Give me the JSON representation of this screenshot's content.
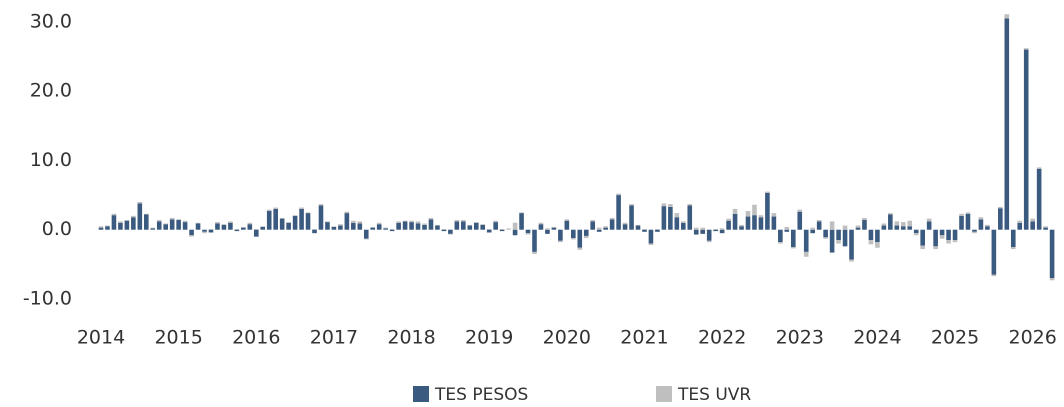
{
  "chart_data": {
    "type": "stacked_bar",
    "categories": [
      "2014",
      null,
      null,
      null,
      null,
      null,
      null,
      null,
      null,
      null,
      null,
      null,
      "2015",
      null,
      null,
      null,
      null,
      null,
      null,
      null,
      null,
      null,
      null,
      null,
      "2016",
      null,
      null,
      null,
      null,
      null,
      null,
      null,
      null,
      null,
      null,
      null,
      "2017",
      null,
      null,
      null,
      null,
      null,
      null,
      null,
      null,
      null,
      null,
      null,
      "2018",
      null,
      null,
      null,
      null,
      null,
      null,
      null,
      null,
      null,
      null,
      null,
      "2019",
      null,
      null,
      null,
      null,
      null,
      null,
      null,
      null,
      null,
      null,
      null,
      "2020",
      null,
      null,
      null,
      null,
      null,
      null,
      null,
      null,
      null,
      null,
      null,
      "2021",
      null,
      null,
      null,
      null,
      null,
      null,
      null,
      null,
      null,
      null,
      null,
      "2022",
      null,
      null,
      null,
      null,
      null,
      null,
      null,
      null,
      null,
      null,
      null,
      "2023",
      null,
      null,
      null,
      null,
      null,
      null,
      null,
      null,
      null,
      null,
      null,
      "2024",
      null,
      null,
      null,
      null,
      null,
      null,
      null,
      null,
      null,
      null,
      null,
      "2025",
      null,
      null,
      null,
      null,
      null,
      null,
      null,
      null,
      null,
      null,
      null,
      "2026",
      null,
      null,
      null
    ],
    "series": [
      {
        "name": "TES PESOS",
        "color": "#3b5a80",
        "values": [
          0.3,
          0.5,
          2.1,
          1.0,
          1.3,
          1.8,
          3.8,
          2.2,
          0.2,
          1.2,
          0.8,
          1.5,
          1.4,
          1.1,
          -0.8,
          0.9,
          -0.3,
          -0.4,
          0.9,
          0.7,
          1.0,
          -0.2,
          0.3,
          0.8,
          -1.0,
          0.4,
          2.7,
          3.0,
          1.6,
          1.0,
          2.0,
          3.0,
          2.4,
          -0.5,
          3.5,
          1.1,
          0.4,
          0.6,
          2.4,
          1.0,
          0.9,
          -1.3,
          0.3,
          0.8,
          0.2,
          -0.2,
          1.0,
          1.2,
          1.1,
          0.9,
          0.7,
          1.5,
          0.6,
          -0.2,
          -0.6,
          1.2,
          1.2,
          0.6,
          1.0,
          0.7,
          -0.4,
          1.1,
          -0.2,
          0.0,
          -0.8,
          2.4,
          -0.5,
          -3.2,
          0.8,
          -0.6,
          0.3,
          -1.6,
          1.3,
          -1.2,
          -2.6,
          -0.9,
          1.2,
          -0.3,
          0.3,
          1.5,
          5.0,
          0.8,
          3.5,
          0.6,
          -0.3,
          -2.0,
          -0.3,
          3.4,
          3.3,
          1.8,
          1.0,
          3.5,
          -0.7,
          -0.6,
          -1.6,
          -0.2,
          -0.5,
          1.3,
          2.3,
          0.5,
          1.9,
          2.1,
          1.8,
          5.3,
          1.9,
          -1.8,
          -0.3,
          -2.5,
          2.6,
          -3.2,
          -0.5,
          1.2,
          -1.1,
          -3.3,
          -1.5,
          -2.4,
          -4.3,
          0.3,
          1.4,
          -1.5,
          -1.8,
          0.6,
          2.2,
          0.6,
          0.5,
          0.5,
          -0.5,
          -2.3,
          1.2,
          -2.4,
          -0.8,
          -1.5,
          -1.5,
          2.0,
          2.3,
          -0.3,
          1.5,
          0.5,
          -6.5,
          3.1,
          30.5,
          -2.5,
          1.0,
          26.0,
          1.2,
          8.8,
          0.3,
          -7.0
        ]
      },
      {
        "name": "TES UVR",
        "color": "#bfbfbf",
        "values": [
          0.2,
          0.1,
          0.2,
          0.2,
          0.1,
          0.2,
          0.2,
          0.1,
          0.1,
          0.2,
          0.1,
          0.2,
          0.1,
          0.2,
          -0.2,
          0.1,
          -0.2,
          0.1,
          0.2,
          0.1,
          0.2,
          0.1,
          0.1,
          0.2,
          0.1,
          0.1,
          0.2,
          0.2,
          0.1,
          0.1,
          0.1,
          0.2,
          0.1,
          0.1,
          0.2,
          0.1,
          0.1,
          0.2,
          0.2,
          0.3,
          0.3,
          -0.1,
          0.1,
          0.2,
          0.1,
          0.1,
          0.2,
          0.1,
          0.2,
          0.3,
          0.2,
          0.2,
          0.1,
          0.1,
          -0.1,
          0.2,
          0.2,
          0.1,
          0.1,
          0.1,
          0.1,
          0.2,
          0.1,
          0.2,
          1.0,
          0.1,
          -0.2,
          -0.3,
          0.2,
          0.2,
          0.1,
          -0.2,
          0.2,
          -0.2,
          -0.3,
          -0.3,
          0.2,
          0.3,
          0.2,
          0.2,
          0.2,
          0.2,
          0.2,
          0.1,
          0.1,
          -0.2,
          0.1,
          0.4,
          0.4,
          0.6,
          0.2,
          0.2,
          0.3,
          0.3,
          -0.2,
          0.1,
          0.2,
          0.3,
          0.7,
          0.2,
          0.8,
          1.5,
          0.3,
          0.2,
          0.5,
          -0.2,
          0.4,
          -0.2,
          0.3,
          -0.7,
          0.3,
          0.2,
          -0.2,
          1.2,
          -0.5,
          0.6,
          -0.3,
          0.3,
          0.3,
          -0.6,
          -0.8,
          0.3,
          0.2,
          0.6,
          0.6,
          0.8,
          -0.3,
          -0.5,
          0.4,
          -0.4,
          -0.5,
          -0.5,
          -0.3,
          0.3,
          0.2,
          -0.2,
          0.3,
          0.2,
          -0.2,
          0.2,
          0.6,
          -0.3,
          0.3,
          0.2,
          0.4,
          0.2,
          0.2,
          -0.3
        ]
      }
    ],
    "ylim": [
      -10,
      32
    ],
    "yticks": [
      {
        "value": -10,
        "label": "-10.0"
      },
      {
        "value": 0,
        "label": "0.0"
      },
      {
        "value": 10,
        "label": "10.0"
      },
      {
        "value": 20,
        "label": "20.0"
      },
      {
        "value": 30,
        "label": "30.0"
      }
    ],
    "legend": "bottom"
  }
}
